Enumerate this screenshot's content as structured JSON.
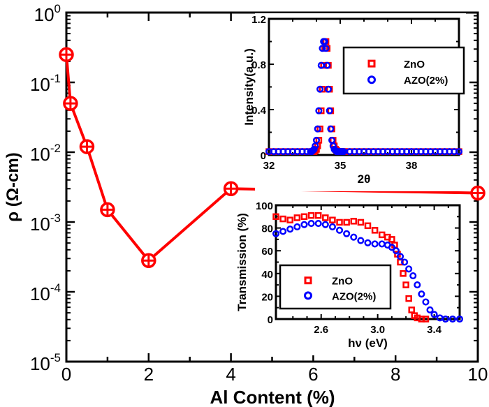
{
  "colors": {
    "zno": "#ff0000",
    "azo": "#0000ff",
    "main": "#ff0000",
    "axis": "#000000"
  },
  "chart_data": [
    {
      "type": "line",
      "xlabel": "Al Content (%)",
      "ylabel": "ρ (Ω-cm)",
      "xlim": [
        0,
        10
      ],
      "ylim": [
        1e-05,
        1
      ],
      "yscale": "log",
      "xticks": [
        0,
        2,
        4,
        6,
        8,
        10
      ],
      "yticks": [
        {
          "base": "10",
          "exp": "0",
          "value": 1
        },
        {
          "base": "10",
          "exp": "-1",
          "value": 0.1
        },
        {
          "base": "10",
          "exp": "-2",
          "value": 0.01
        },
        {
          "base": "10",
          "exp": "-3",
          "value": 0.001
        },
        {
          "base": "10",
          "exp": "-4",
          "value": 0.0001
        },
        {
          "base": "10",
          "exp": "-5",
          "value": 1e-05
        }
      ],
      "marker": "circle-plus",
      "x": [
        0,
        0.1,
        0.5,
        1,
        2,
        4,
        10
      ],
      "y": [
        0.25,
        0.05,
        0.012,
        0.0015,
        0.00028,
        0.003,
        0.0026
      ]
    },
    {
      "type": "scatter",
      "xlabel": "2θ",
      "ylabel": "Intensity(a.u.)",
      "xlim": [
        32,
        40
      ],
      "ylim": [
        0,
        1.2
      ],
      "xticks": [
        32,
        35,
        38
      ],
      "yticks": [
        0,
        0.4,
        0.8,
        1.2
      ],
      "legend": "top-right",
      "series": [
        {
          "name": "ZnO",
          "marker": "square",
          "x": [
            32.0,
            32.2,
            32.4,
            32.6,
            32.8,
            33.0,
            33.2,
            33.4,
            33.6,
            33.8,
            33.85,
            33.9,
            33.95,
            34.0,
            34.05,
            34.1,
            34.15,
            34.2,
            34.25,
            34.3,
            34.35,
            34.4,
            34.45,
            34.5,
            34.55,
            34.6,
            34.65,
            34.7,
            34.75,
            34.8,
            34.85,
            34.9,
            34.95,
            35.0,
            35.05,
            35.1,
            35.15,
            35.2,
            35.4,
            35.6,
            35.8,
            36.0,
            36.2,
            36.4,
            36.6,
            36.8,
            37.0,
            37.2,
            37.4,
            37.6,
            37.8,
            38.0,
            38.2,
            38.4,
            38.6,
            38.8,
            39.0,
            39.2,
            39.4,
            39.6,
            39.8,
            40.0
          ],
          "y": [
            0.03,
            0.03,
            0.03,
            0.03,
            0.03,
            0.03,
            0.03,
            0.03,
            0.03,
            0.03,
            0.03,
            0.03,
            0.04,
            0.05,
            0.08,
            0.13,
            0.23,
            0.39,
            0.58,
            0.79,
            0.94,
            1.0,
            0.94,
            0.79,
            0.58,
            0.39,
            0.23,
            0.13,
            0.08,
            0.05,
            0.04,
            0.03,
            0.03,
            0.03,
            0.03,
            0.03,
            0.03,
            0.03,
            0.03,
            0.03,
            0.03,
            0.03,
            0.03,
            0.03,
            0.03,
            0.03,
            0.03,
            0.03,
            0.03,
            0.03,
            0.03,
            0.03,
            0.03,
            0.03,
            0.03,
            0.03,
            0.03,
            0.03,
            0.03,
            0.03,
            0.03,
            0.03
          ]
        },
        {
          "name": "AZO(2%)",
          "marker": "circle",
          "x": [
            32.0,
            32.2,
            32.4,
            32.6,
            32.8,
            33.0,
            33.2,
            33.4,
            33.6,
            33.75,
            33.8,
            33.85,
            33.9,
            33.95,
            34.0,
            34.05,
            34.1,
            34.15,
            34.2,
            34.25,
            34.3,
            34.35,
            34.4,
            34.45,
            34.5,
            34.55,
            34.6,
            34.65,
            34.7,
            34.75,
            34.8,
            34.85,
            34.9,
            34.95,
            35.0,
            35.05,
            35.1,
            35.15,
            35.4,
            35.6,
            35.8,
            36.0,
            36.2,
            36.4,
            36.6,
            36.8,
            37.0,
            37.2,
            37.4,
            37.6,
            37.8,
            38.0,
            38.2,
            38.4,
            38.6,
            38.8,
            39.0,
            39.2,
            39.4,
            39.6,
            39.8,
            40.0
          ],
          "y": [
            0.03,
            0.03,
            0.03,
            0.03,
            0.03,
            0.03,
            0.03,
            0.03,
            0.03,
            0.03,
            0.03,
            0.04,
            0.05,
            0.08,
            0.13,
            0.23,
            0.39,
            0.58,
            0.79,
            0.94,
            1.0,
            1.0,
            0.94,
            0.79,
            0.58,
            0.39,
            0.23,
            0.13,
            0.08,
            0.05,
            0.04,
            0.03,
            0.03,
            0.03,
            0.03,
            0.03,
            0.03,
            0.03,
            0.03,
            0.03,
            0.03,
            0.03,
            0.03,
            0.03,
            0.03,
            0.03,
            0.03,
            0.03,
            0.03,
            0.03,
            0.03,
            0.03,
            0.03,
            0.03,
            0.03,
            0.03,
            0.03,
            0.03,
            0.03,
            0.03,
            0.03,
            0.03
          ]
        }
      ]
    },
    {
      "type": "scatter",
      "xlabel": "hν (eV)",
      "ylabel": "Transmission (%)",
      "xlim": [
        2.28,
        3.58
      ],
      "ylim": [
        0,
        100
      ],
      "xticks": [
        2.6,
        3.0,
        3.4
      ],
      "yticks": [
        0,
        20,
        40,
        60,
        80,
        100
      ],
      "legend": "bottom-left",
      "series": [
        {
          "name": "ZnO",
          "marker": "square",
          "x": [
            2.28,
            2.33,
            2.38,
            2.43,
            2.48,
            2.53,
            2.58,
            2.63,
            2.68,
            2.73,
            2.78,
            2.83,
            2.88,
            2.93,
            2.98,
            3.03,
            3.07,
            3.1,
            3.12,
            3.14,
            3.16,
            3.18,
            3.2,
            3.22,
            3.24,
            3.26,
            3.28,
            3.31,
            3.34
          ],
          "y": [
            90,
            88,
            87,
            89,
            90,
            91,
            91,
            89,
            87,
            85,
            85,
            86,
            85,
            82,
            78,
            74,
            72,
            70,
            65,
            57,
            50,
            40,
            30,
            18,
            8,
            3,
            1,
            0,
            0
          ]
        },
        {
          "name": "AZO(2%)",
          "marker": "circle",
          "x": [
            2.28,
            2.33,
            2.38,
            2.43,
            2.48,
            2.53,
            2.58,
            2.63,
            2.68,
            2.73,
            2.78,
            2.83,
            2.88,
            2.93,
            2.98,
            3.03,
            3.07,
            3.1,
            3.13,
            3.16,
            3.19,
            3.22,
            3.25,
            3.28,
            3.31,
            3.34,
            3.37,
            3.4,
            3.44,
            3.48,
            3.53,
            3.58
          ],
          "y": [
            75,
            77,
            79,
            81,
            83,
            84,
            84,
            83,
            81,
            78,
            75,
            72,
            69,
            67,
            66,
            66,
            65,
            63,
            60,
            55,
            50,
            44,
            38,
            30,
            22,
            15,
            8,
            4,
            1,
            0,
            0,
            0
          ]
        }
      ]
    }
  ]
}
